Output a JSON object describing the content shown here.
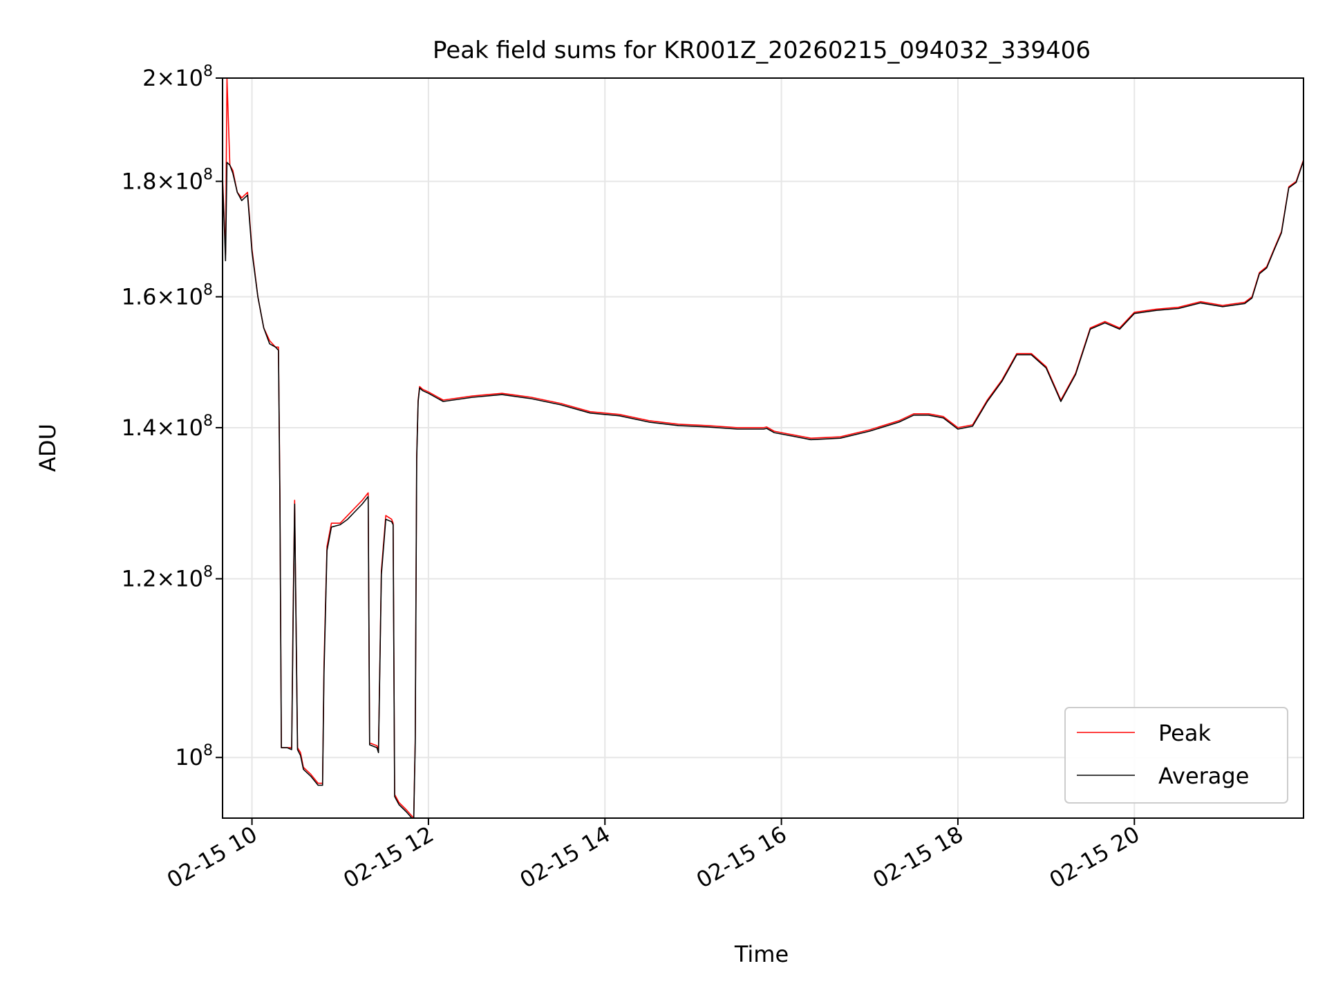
{
  "chart_data": {
    "type": "line",
    "title": "Peak field sums for KR001Z_20260215_094032_339406",
    "xlabel": "Time",
    "ylabel": "ADU",
    "y_scale": "log",
    "xlim": [
      "02-15 09:40",
      "02-15 21:55"
    ],
    "ylim": [
      94000000,
      200000000
    ],
    "grid": true,
    "legend_position": "lower-right",
    "x_ticks": [
      {
        "t": "02-15 10:00",
        "label": "02-15 10"
      },
      {
        "t": "02-15 12:00",
        "label": "02-15 12"
      },
      {
        "t": "02-15 14:00",
        "label": "02-15 14"
      },
      {
        "t": "02-15 16:00",
        "label": "02-15 16"
      },
      {
        "t": "02-15 18:00",
        "label": "02-15 18"
      },
      {
        "t": "02-15 20:00",
        "label": "02-15 20"
      }
    ],
    "y_ticks": [
      {
        "v": 100000000,
        "mant": "",
        "exp": "8"
      },
      {
        "v": 120000000,
        "mant": "1.2",
        "exp": "8"
      },
      {
        "v": 140000000,
        "mant": "1.4",
        "exp": "8"
      },
      {
        "v": 160000000,
        "mant": "1.6",
        "exp": "8"
      },
      {
        "v": 180000000,
        "mant": "1.8",
        "exp": "8"
      },
      {
        "v": 200000000,
        "mant": "2",
        "exp": "8"
      }
    ],
    "series": [
      {
        "name": "Peak",
        "color": "#ff0000"
      },
      {
        "name": "Average",
        "color": "#000000"
      }
    ],
    "x": [
      "02-15 09:40",
      "02-15 09:41",
      "02-15 09:42",
      "02-15 09:43",
      "02-15 09:45",
      "02-15 09:47",
      "02-15 09:50",
      "02-15 09:53",
      "02-15 09:57",
      "02-15 10:00",
      "02-15 10:04",
      "02-15 10:08",
      "02-15 10:12",
      "02-15 10:16",
      "02-15 10:18",
      "02-15 10:19",
      "02-15 10:20",
      "02-15 10:24",
      "02-15 10:27",
      "02-15 10:28",
      "02-15 10:29",
      "02-15 10:31",
      "02-15 10:33",
      "02-15 10:35",
      "02-15 10:40",
      "02-15 10:45",
      "02-15 10:48",
      "02-15 10:49",
      "02-15 10:51",
      "02-15 10:54",
      "02-15 11:00",
      "02-15 11:05",
      "02-15 11:10",
      "02-15 11:15",
      "02-15 11:19",
      "02-15 11:20",
      "02-15 11:25",
      "02-15 11:26",
      "02-15 11:28",
      "02-15 11:31",
      "02-15 11:35",
      "02-15 11:36",
      "02-15 11:37",
      "02-15 11:40",
      "02-15 11:45",
      "02-15 11:50",
      "02-15 11:51",
      "02-15 11:52",
      "02-15 11:53",
      "02-15 11:54",
      "02-15 11:56",
      "02-15 12:00",
      "02-15 12:10",
      "02-15 12:30",
      "02-15 12:50",
      "02-15 13:10",
      "02-15 13:30",
      "02-15 13:50",
      "02-15 14:00",
      "02-15 14:10",
      "02-15 14:30",
      "02-15 14:50",
      "02-15 15:10",
      "02-15 15:30",
      "02-15 15:48",
      "02-15 15:50",
      "02-15 15:55",
      "02-15 16:00",
      "02-15 16:20",
      "02-15 16:40",
      "02-15 17:00",
      "02-15 17:20",
      "02-15 17:30",
      "02-15 17:40",
      "02-15 17:50",
      "02-15 18:00",
      "02-15 18:10",
      "02-15 18:20",
      "02-15 18:30",
      "02-15 18:40",
      "02-15 18:50",
      "02-15 19:00",
      "02-15 19:10",
      "02-15 19:20",
      "02-15 19:30",
      "02-15 19:40",
      "02-15 19:50",
      "02-15 20:00",
      "02-15 20:15",
      "02-15 20:30",
      "02-15 20:45",
      "02-15 21:00",
      "02-15 21:15",
      "02-15 21:20",
      "02-15 21:25",
      "02-15 21:30",
      "02-15 21:35",
      "02-15 21:40",
      "02-15 21:45",
      "02-15 21:50",
      "02-15 21:55"
    ],
    "peak": [
      181000000,
      174000000,
      167000000,
      200000000,
      183000000,
      182000000,
      178000000,
      177000000,
      178000000,
      168000000,
      160000000,
      155000000,
      153000000,
      152000000,
      152000000,
      131000000,
      101000000,
      101000000,
      101000000,
      116000000,
      130000000,
      101000000,
      100500000,
      99000000,
      98300000,
      97400000,
      97400000,
      110000000,
      124000000,
      127000000,
      127000000,
      128000000,
      129000000,
      130000000,
      131000000,
      101500000,
      101200000,
      100800000,
      121000000,
      128000000,
      127500000,
      127000000,
      96300000,
      95500000,
      94800000,
      94000000,
      102000000,
      136000000,
      144000000,
      146000000,
      145600000,
      145200000,
      144000000,
      144600000,
      145000000,
      144400000,
      143500000,
      142300000,
      142100000,
      141900000,
      141000000,
      140500000,
      140300000,
      140000000,
      140000000,
      140100000,
      139500000,
      139300000,
      138500000,
      138700000,
      139700000,
      141000000,
      142000000,
      142000000,
      141600000,
      140000000,
      140400000,
      144000000,
      147000000,
      151000000,
      151000000,
      149000000,
      144000000,
      148000000,
      155000000,
      156000000,
      155000000,
      157500000,
      158000000,
      158300000,
      159200000,
      158600000,
      159100000,
      160000000,
      164000000,
      165000000,
      168000000,
      171000000,
      179000000,
      180000000,
      184000000
    ],
    "average": [
      180000000,
      173500000,
      166000000,
      183500000,
      183000000,
      181500000,
      178000000,
      176500000,
      177500000,
      167500000,
      160000000,
      155000000,
      152500000,
      152000000,
      151500000,
      130000000,
      101000000,
      101000000,
      100800000,
      115000000,
      129500000,
      100800000,
      100200000,
      98800000,
      98100000,
      97200000,
      97200000,
      109000000,
      123500000,
      126500000,
      126800000,
      127500000,
      128500000,
      129500000,
      130500000,
      101300000,
      101000000,
      100500000,
      120500000,
      127500000,
      127200000,
      126800000,
      96100000,
      95300000,
      94600000,
      93800000,
      101500000,
      135500000,
      143800000,
      145800000,
      145400000,
      145000000,
      143800000,
      144400000,
      144800000,
      144200000,
      143300000,
      142100000,
      141900000,
      141700000,
      140800000,
      140300000,
      140100000,
      139800000,
      139800000,
      139900000,
      139300000,
      139100000,
      138300000,
      138500000,
      139500000,
      140800000,
      141800000,
      141800000,
      141400000,
      139800000,
      140200000,
      143800000,
      146800000,
      150800000,
      150800000,
      148800000,
      143800000,
      147800000,
      154800000,
      155800000,
      154800000,
      157300000,
      157800000,
      158100000,
      159000000,
      158400000,
      158900000,
      159800000,
      163800000,
      164800000,
      167800000,
      170800000,
      178800000,
      179800000,
      183800000
    ]
  }
}
